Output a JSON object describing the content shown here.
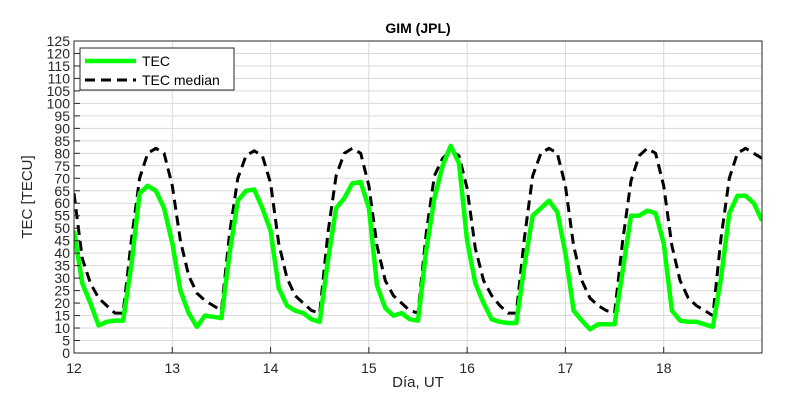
{
  "chart_data": {
    "type": "line",
    "title": "GIM (JPL)",
    "xlabel": "Día, UT",
    "ylabel": "TEC [TECU]",
    "xlim": [
      12,
      19
    ],
    "ylim": [
      0,
      125
    ],
    "xticks": [
      12,
      13,
      14,
      15,
      16,
      17,
      18
    ],
    "yticks": [
      0,
      5,
      10,
      15,
      20,
      25,
      30,
      35,
      40,
      45,
      50,
      55,
      60,
      65,
      70,
      75,
      80,
      85,
      90,
      95,
      100,
      105,
      110,
      115,
      120,
      125
    ],
    "grid": true,
    "legend_position": "top-left",
    "series": [
      {
        "name": "TEC",
        "color": "#00ff00",
        "style": "solid",
        "x": [
          12.0,
          12.083,
          12.167,
          12.25,
          12.333,
          12.417,
          12.5,
          12.583,
          12.667,
          12.75,
          12.833,
          12.917,
          13.0,
          13.083,
          13.167,
          13.25,
          13.333,
          13.417,
          13.5,
          13.583,
          13.667,
          13.75,
          13.833,
          13.917,
          14.0,
          14.083,
          14.167,
          14.25,
          14.333,
          14.417,
          14.5,
          14.583,
          14.667,
          14.75,
          14.833,
          14.917,
          15.0,
          15.083,
          15.167,
          15.25,
          15.333,
          15.417,
          15.5,
          15.583,
          15.667,
          15.75,
          15.833,
          15.917,
          16.0,
          16.083,
          16.167,
          16.25,
          16.333,
          16.417,
          16.5,
          16.583,
          16.667,
          16.75,
          16.833,
          16.917,
          17.0,
          17.083,
          17.167,
          17.25,
          17.333,
          17.417,
          17.5,
          17.583,
          17.667,
          17.75,
          17.833,
          17.917,
          18.0,
          18.083,
          18.167,
          18.25,
          18.333,
          18.417,
          18.5,
          18.583,
          18.667,
          18.75,
          18.833,
          18.917,
          19.0
        ],
        "y": [
          49,
          28,
          20,
          11,
          12.5,
          13,
          13,
          35,
          64,
          67,
          65,
          58,
          44,
          25,
          16,
          10.5,
          15,
          14.5,
          14,
          40,
          61,
          65,
          65.5,
          58,
          49,
          26,
          19,
          17,
          16,
          13.5,
          12.5,
          37,
          58,
          62,
          68,
          68.5,
          58,
          27,
          18,
          15,
          16,
          13.5,
          13,
          41,
          62,
          75,
          83,
          76,
          45,
          28,
          20,
          13.5,
          12.5,
          12,
          12,
          35,
          55,
          58,
          61,
          56.5,
          40,
          17,
          13,
          9.5,
          11.5,
          11.5,
          11.5,
          33,
          55,
          55,
          57,
          56,
          44,
          17,
          13,
          12.5,
          12.5,
          11.5,
          10.5,
          30,
          56,
          63,
          63,
          60,
          53
        ]
      },
      {
        "name": "TEC median",
        "color": "#000000",
        "style": "dashed",
        "x": [
          12.0,
          12.083,
          12.167,
          12.25,
          12.333,
          12.417,
          12.5,
          12.583,
          12.667,
          12.75,
          12.833,
          12.917,
          13.0,
          13.083,
          13.167,
          13.25,
          13.333,
          13.417,
          13.5,
          13.583,
          13.667,
          13.75,
          13.833,
          13.917,
          14.0,
          14.083,
          14.167,
          14.25,
          14.333,
          14.417,
          14.5,
          14.583,
          14.667,
          14.75,
          14.833,
          14.917,
          15.0,
          15.083,
          15.167,
          15.25,
          15.333,
          15.417,
          15.5,
          15.583,
          15.667,
          15.75,
          15.833,
          15.917,
          16.0,
          16.083,
          16.167,
          16.25,
          16.333,
          16.417,
          16.5,
          16.583,
          16.667,
          16.75,
          16.833,
          16.917,
          17.0,
          17.083,
          17.167,
          17.25,
          17.333,
          17.417,
          17.5,
          17.583,
          17.667,
          17.75,
          17.833,
          17.917,
          18.0,
          18.083,
          18.167,
          18.25,
          18.333,
          18.417,
          18.5,
          18.583,
          18.667,
          18.75,
          18.833,
          18.917,
          19.0
        ],
        "y": [
          64,
          38,
          28,
          22,
          19,
          16,
          16,
          45,
          70,
          80,
          82,
          80,
          67,
          45,
          31,
          24,
          21,
          19,
          17,
          48,
          70,
          79,
          81,
          79,
          68,
          44,
          30,
          23,
          20,
          17,
          16,
          48,
          71,
          80,
          82,
          80,
          67,
          43,
          29,
          23,
          20,
          17,
          16,
          48,
          71,
          78,
          81,
          79,
          66,
          42,
          29,
          23,
          19,
          16,
          16,
          46,
          71,
          80,
          82,
          80,
          67,
          43,
          29,
          22,
          19,
          17,
          16,
          45,
          69,
          79,
          82,
          80,
          67,
          43,
          29,
          22,
          19,
          17,
          15,
          46,
          70,
          80,
          82,
          80,
          78
        ]
      }
    ]
  }
}
